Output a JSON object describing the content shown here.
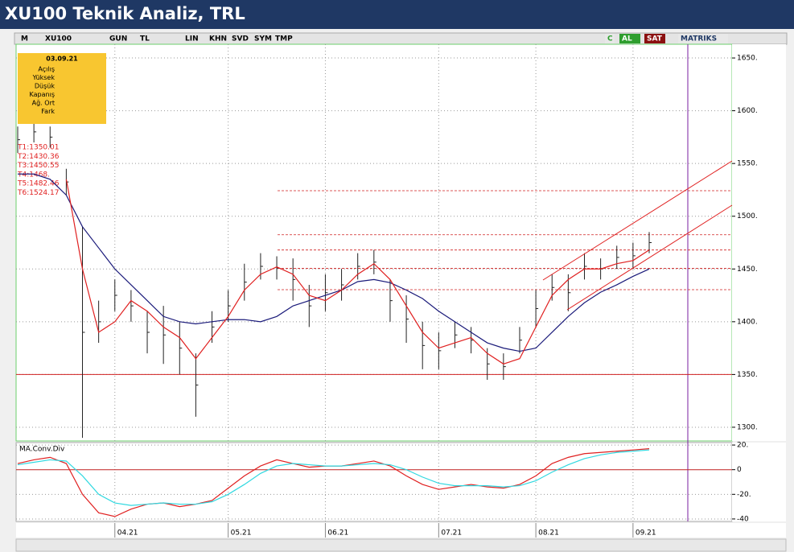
{
  "header": {
    "title": "XU100 Teknik Analiz, TRL"
  },
  "toolbar": {
    "left": [
      "M",
      "XU100",
      "GUN",
      "TL",
      "LIN",
      "KHN",
      "SVD",
      "SYM",
      "TMP"
    ],
    "right": [
      "C",
      "AL",
      "SAT",
      "MATRIKS"
    ]
  },
  "info_box": {
    "date": "03.09.21",
    "labels": [
      "Açılış",
      "Yüksek",
      "Düşük",
      "Kapanış",
      "Ağ. Ort",
      "Fark"
    ]
  },
  "chart_data": [
    {
      "type": "hilo",
      "categories": [
        null,
        null,
        null,
        null,
        null,
        null,
        "04.21",
        null,
        null,
        null,
        null,
        null,
        null,
        "05.21",
        null,
        null,
        null,
        null,
        null,
        "06.21",
        null,
        null,
        null,
        null,
        null,
        null,
        "07.21",
        null,
        null,
        null,
        null,
        null,
        "08.21",
        null,
        null,
        null,
        null,
        null,
        "09.21",
        null
      ],
      "high": [
        1585,
        1590,
        1585,
        1545,
        1490,
        1420,
        1440,
        1430,
        1410,
        1415,
        1400,
        1370,
        1410,
        1430,
        1455,
        1465,
        1462,
        1460,
        1435,
        1445,
        1450,
        1465,
        1468,
        1440,
        1425,
        1400,
        1390,
        1400,
        1395,
        1375,
        1370,
        1395,
        1430,
        1445,
        1445,
        1465,
        1460,
        1472,
        1475,
        1485
      ],
      "low": [
        1560,
        1570,
        1565,
        1520,
        1290,
        1380,
        1410,
        1400,
        1370,
        1360,
        1350,
        1310,
        1380,
        1400,
        1420,
        1440,
        1440,
        1420,
        1395,
        1410,
        1420,
        1440,
        1445,
        1400,
        1380,
        1355,
        1355,
        1375,
        1370,
        1345,
        1345,
        1370,
        1395,
        1420,
        1410,
        1440,
        1440,
        1450,
        1450,
        1465
      ],
      "ma_fast": [
        null,
        null,
        null,
        1535,
        1450,
        1390,
        1400,
        1420,
        1410,
        1395,
        1385,
        1365,
        1385,
        1405,
        1430,
        1445,
        1452,
        1445,
        1425,
        1420,
        1430,
        1445,
        1455,
        1440,
        1415,
        1390,
        1375,
        1380,
        1385,
        1370,
        1360,
        1365,
        1395,
        1425,
        1440,
        1450,
        1450,
        1455,
        1458,
        1468
      ],
      "ma_slow": [
        1540,
        1540,
        1535,
        1520,
        1490,
        1470,
        1450,
        1435,
        1420,
        1405,
        1400,
        1398,
        1400,
        1402,
        1402,
        1400,
        1405,
        1415,
        1420,
        1425,
        1430,
        1438,
        1440,
        1437,
        1430,
        1422,
        1410,
        1400,
        1390,
        1380,
        1375,
        1372,
        1375,
        1390,
        1405,
        1418,
        1428,
        1435,
        1443,
        1450
      ],
      "bar_color": "#222222",
      "fast_color": "#e02020",
      "slow_color": "#1a1a7a",
      "levels": {
        "values": [
          1350.01,
          1430.36,
          1450.55,
          1468,
          1482.46,
          1524.17
        ],
        "value_labels": [
          "T1:1350.01",
          "T2:1430.36",
          "T3:1450.55",
          "T4:1468.",
          "T5:1482.46",
          "T6:1524.17"
        ]
      },
      "ylim": [
        1287,
        1663
      ],
      "yticks": [
        {
          "value": 1300,
          "label": "1300."
        },
        {
          "value": 1350,
          "label": "1350."
        },
        {
          "value": 1400,
          "label": "1400."
        },
        {
          "value": 1450,
          "label": "1450."
        },
        {
          "value": 1500,
          "label": "1500."
        },
        {
          "value": 1550,
          "label": "1550."
        },
        {
          "value": 1600,
          "label": "1600."
        },
        {
          "value": 1650,
          "label": "1650."
        }
      ],
      "grid": true
    },
    {
      "type": "line",
      "title": "MA.Conv.Div",
      "series": [
        {
          "color": "#e02020",
          "values": [
            5,
            8,
            10,
            5,
            -20,
            -35,
            -38,
            -32,
            -28,
            -27,
            -30,
            -28,
            -25,
            -15,
            -5,
            3,
            8,
            5,
            2,
            3,
            3,
            5,
            7,
            3,
            -5,
            -12,
            -16,
            -14,
            -12,
            -14,
            -15,
            -12,
            -5,
            5,
            10,
            13,
            14,
            15,
            16,
            17
          ]
        },
        {
          "color": "#30d8e0",
          "values": [
            4,
            6,
            8,
            7,
            -5,
            -20,
            -27,
            -29,
            -28,
            -27,
            -28,
            -28,
            -26,
            -20,
            -12,
            -3,
            3,
            5,
            4,
            3,
            3,
            4,
            5,
            4,
            0,
            -6,
            -11,
            -13,
            -13,
            -13,
            -14,
            -13,
            -9,
            -2,
            4,
            9,
            12,
            14,
            15,
            16
          ]
        }
      ],
      "ylim": [
        -42,
        22
      ],
      "yticks": [
        {
          "value": 20,
          "label": "20."
        },
        0,
        {
          "value": -20,
          "label": "-20."
        },
        {
          "value": -40,
          "label": "-40"
        }
      ],
      "grid": true
    }
  ]
}
